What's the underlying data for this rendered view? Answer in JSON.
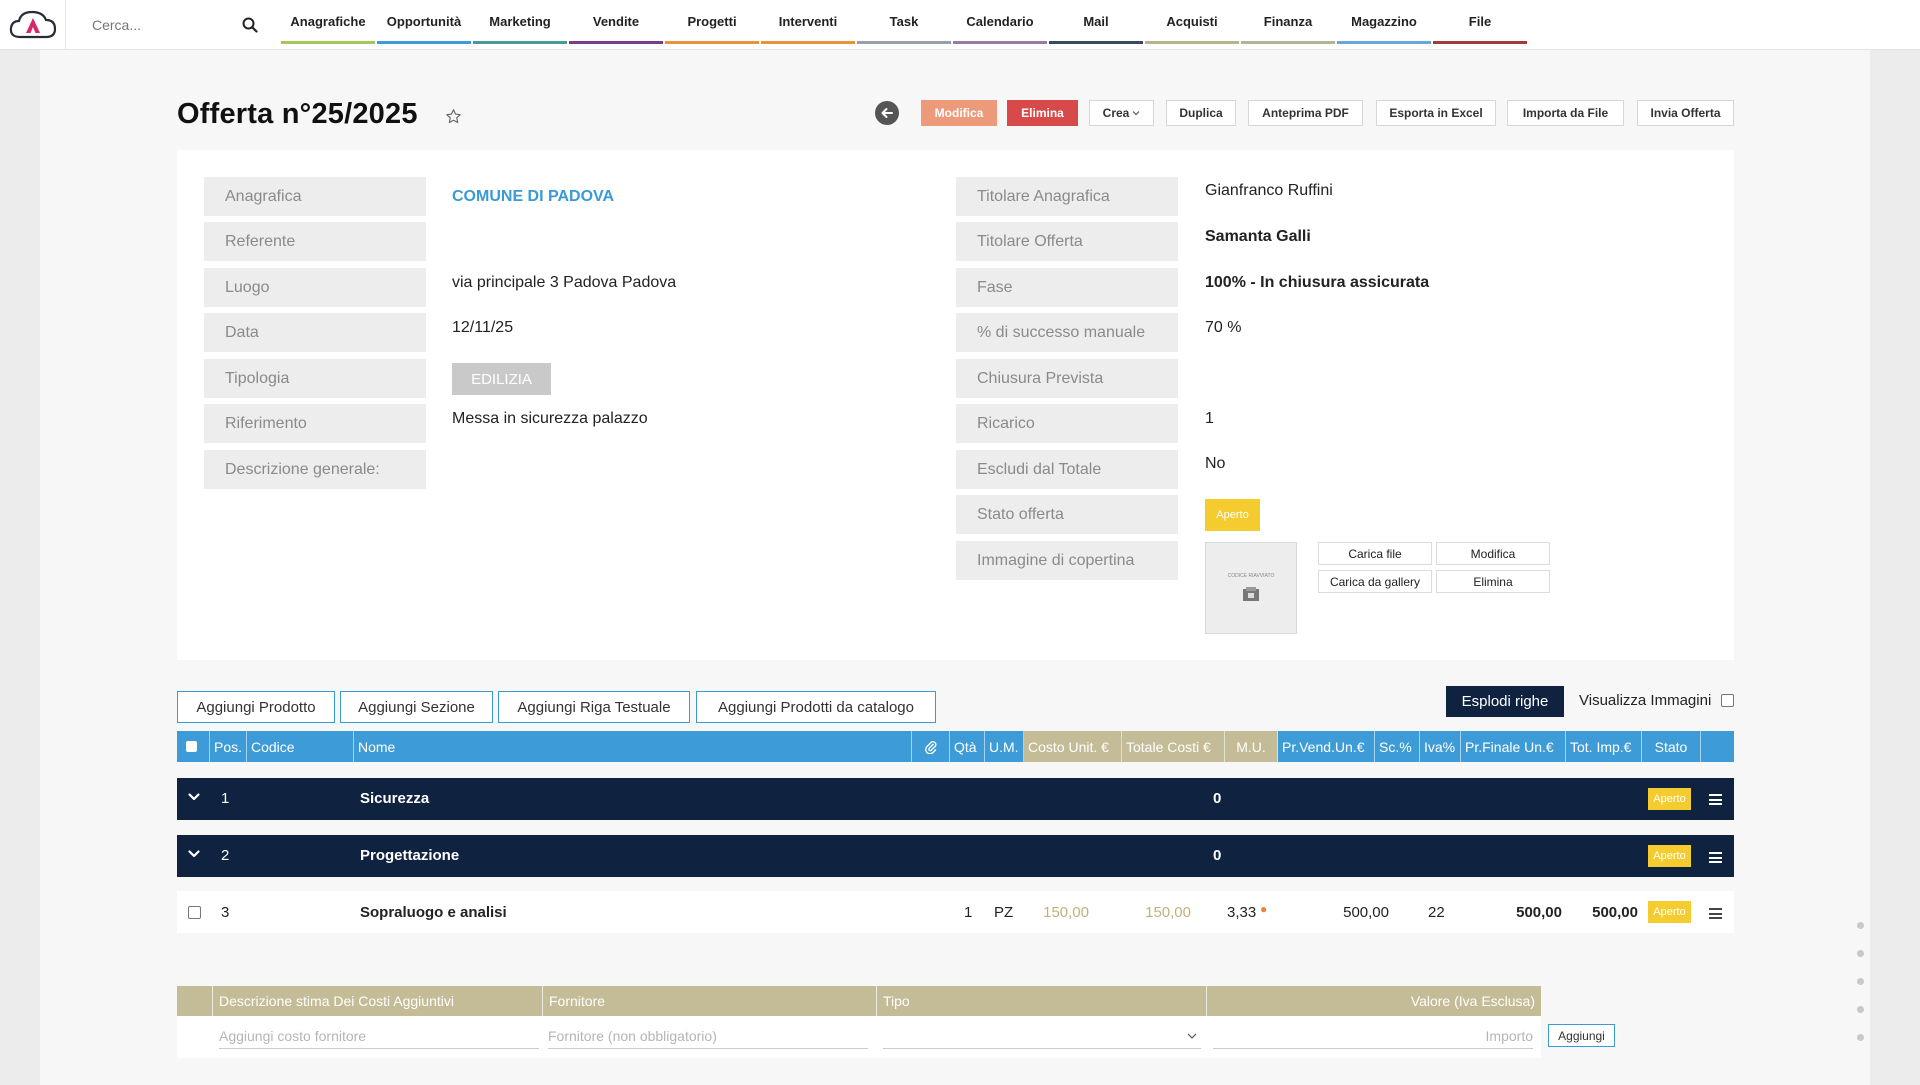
{
  "nav": {
    "search_placeholder": "Cerca...",
    "items": [
      {
        "label": "Anagrafiche",
        "color": "#a6c65a"
      },
      {
        "label": "Opportunità",
        "color": "#3d9cd8"
      },
      {
        "label": "Marketing",
        "color": "#4a9a9a"
      },
      {
        "label": "Vendite",
        "color": "#7a3d8a"
      },
      {
        "label": "Progetti",
        "color": "#e8943a"
      },
      {
        "label": "Interventi",
        "color": "#e8943a"
      },
      {
        "label": "Task",
        "color": "#9aa0a8"
      },
      {
        "label": "Calendario",
        "color": "#9a7aa6"
      },
      {
        "label": "Mail",
        "color": "#3a4a5a"
      },
      {
        "label": "Acquisti",
        "color": "#b6b68a"
      },
      {
        "label": "Finanza",
        "color": "#b4b497"
      },
      {
        "label": "Magazzino",
        "color": "#6aa6d6"
      },
      {
        "label": "File",
        "color": "#a63a3a"
      }
    ]
  },
  "header": {
    "title": "Offerta n°25/2025",
    "buttons": {
      "modifica": "Modifica",
      "elimina": "Elimina",
      "crea": "Crea",
      "duplica": "Duplica",
      "anteprima": "Anteprima PDF",
      "esporta": "Esporta in Excel",
      "importa": "Importa da File",
      "invia": "Invia Offerta"
    }
  },
  "info": {
    "left": {
      "anagrafica_label": "Anagrafica",
      "anagrafica_value": "COMUNE DI PADOVA",
      "referente_label": "Referente",
      "luogo_label": "Luogo",
      "luogo_value": "via principale 3 Padova Padova",
      "data_label": "Data",
      "data_value": "12/11/25",
      "tipologia_label": "Tipologia",
      "tipologia_value": "EDILIZIA",
      "riferimento_label": "Riferimento",
      "riferimento_value": "Messa in sicurezza palazzo",
      "descrizione_label": "Descrizione generale:"
    },
    "right": {
      "titolare_anagrafica_label": "Titolare Anagrafica",
      "titolare_anagrafica_value": "Gianfranco Ruffini",
      "titolare_offerta_label": "Titolare Offerta",
      "titolare_offerta_value": "Samanta Galli",
      "fase_label": "Fase",
      "fase_value": "100% - In chiusura assicurata",
      "successo_label": "% di successo manuale",
      "successo_value": "70 %",
      "chiusura_label": "Chiusura Prevista",
      "ricarico_label": "Ricarico",
      "ricarico_value": "1",
      "escludi_label": "Escludi dal Totale",
      "escludi_value": "No",
      "stato_label": "Stato offerta",
      "stato_value": "Aperto",
      "immagine_label": "Immagine di copertina",
      "cover_text": "CODICE RIAVVIATO",
      "carica_file": "Carica file",
      "modifica": "Modifica",
      "carica_gallery": "Carica da gallery",
      "elimina": "Elimina"
    }
  },
  "actions": {
    "aggiungi_prodotto": "Aggiungi Prodotto",
    "aggiungi_sezione": "Aggiungi Sezione",
    "aggiungi_riga": "Aggiungi Riga Testuale",
    "aggiungi_catalogo": "Aggiungi Prodotti da catalogo",
    "esplodi": "Esplodi righe",
    "visualizza_immagini": "Visualizza Immagini"
  },
  "table": {
    "columns": {
      "pos": "Pos.",
      "codice": "Codice",
      "nome": "Nome",
      "qta": "Qtà",
      "um": "U.M.",
      "costo_unit": "Costo Unit. €",
      "totale_costi": "Totale Costi €",
      "mu": "M.U.",
      "pr_vend": "Pr.Vend.Un.€",
      "sc": "Sc.%",
      "iva": "Iva%",
      "pr_finale": "Pr.Finale Un.€",
      "tot_imp": "Tot. Imp.€",
      "stato": "Stato"
    },
    "sections": [
      {
        "pos": "1",
        "name": "Sicurezza",
        "total": "0",
        "status": "Aperto"
      },
      {
        "pos": "2",
        "name": "Progettazione",
        "total": "0",
        "status": "Aperto"
      }
    ],
    "item": {
      "pos": "3",
      "name": "Sopraluogo e analisi",
      "qta": "1",
      "um": "PZ",
      "costo_unit": "150,00",
      "totale_costi": "150,00",
      "mu": "3,33",
      "pr_vend": "500,00",
      "iva": "22",
      "pr_finale": "500,00",
      "tot_imp": "500,00",
      "status": "Aperto"
    }
  },
  "costs": {
    "col_descrizione": "Descrizione stima Dei Costi Aggiuntivi",
    "col_fornitore": "Fornitore",
    "col_tipo": "Tipo",
    "col_valore": "Valore (Iva Esclusa)",
    "ph_descrizione": "Aggiungi costo fornitore",
    "ph_fornitore": "Fornitore (non obbligatorio)",
    "ph_importo": "Importo",
    "aggiungi": "Aggiungi"
  }
}
